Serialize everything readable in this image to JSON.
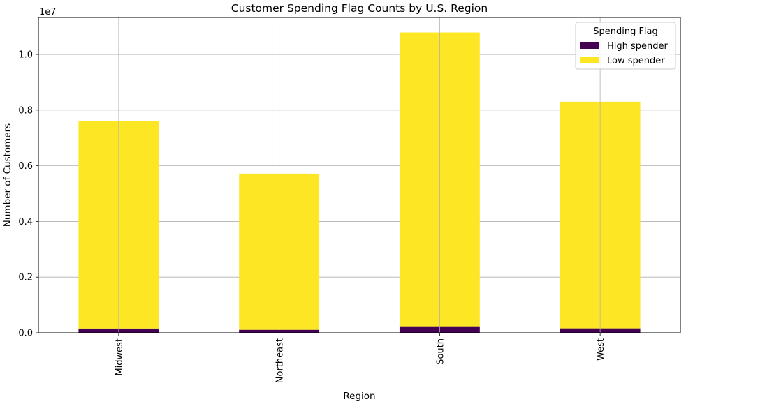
{
  "chart_data": {
    "type": "bar",
    "stacked": true,
    "title": "Customer Spending Flag Counts by U.S. Region",
    "xlabel": "Region",
    "ylabel": "Number of Customers",
    "y_offset_label": "1e7",
    "categories": [
      "Midwest",
      "Northeast",
      "South",
      "West"
    ],
    "series": [
      {
        "name": "High spender",
        "color": "#440154",
        "values": [
          155000,
          108000,
          210000,
          160000
        ]
      },
      {
        "name": "Low spender",
        "color": "#fde725",
        "values": [
          7440000,
          5610000,
          10580000,
          8140000
        ]
      }
    ],
    "ylim": [
      0,
      11330000
    ],
    "yticks": [
      0,
      2000000,
      4000000,
      6000000,
      8000000,
      10000000
    ],
    "ytick_labels": [
      "0.0",
      "0.2",
      "0.4",
      "0.6",
      "0.8",
      "1.0"
    ],
    "grid": true,
    "legend": {
      "title": "Spending Flag",
      "position": "top-right"
    }
  }
}
